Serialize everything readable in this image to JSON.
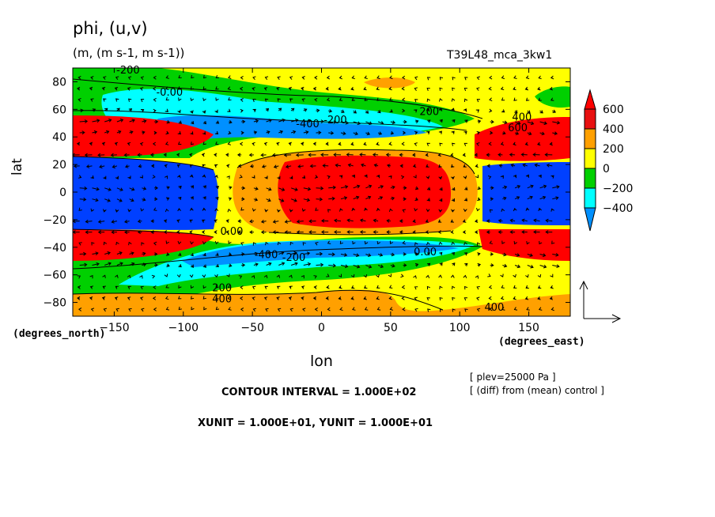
{
  "header": {
    "title": "phi, (u,v)",
    "units": "(m, (m s-1, m s-1))",
    "run": "T39L48_mca_3kw1"
  },
  "footer": {
    "contour_interval": "CONTOUR INTERVAL = 1.000E+02",
    "xyunit": "XUNIT = 1.000E+01, YUNIT = 1.000E+01",
    "plev": "[ plev=25000 Pa ]",
    "diff": "[ (diff) from (mean) control ]"
  },
  "chart_data": {
    "type": "heatmap",
    "title": "phi, (u,v)",
    "xlabel": "lon",
    "ylabel": "lat",
    "x_units_label": "(degrees_east)",
    "y_units_label": "(degrees_north)",
    "xlim": [
      -180,
      180
    ],
    "ylim": [
      -90,
      90
    ],
    "x_ticks": [
      -150,
      -100,
      -50,
      0,
      50,
      100,
      150
    ],
    "y_ticks": [
      -80,
      -60,
      -40,
      -20,
      0,
      20,
      40,
      60,
      80
    ],
    "colorbar": {
      "labels": [
        "600",
        "400",
        "200",
        "0",
        "-200",
        "-400"
      ],
      "levels": [
        600,
        400,
        200,
        0,
        -200,
        -400
      ],
      "colors": {
        "ge_600": "#ff0000",
        "400_600": "#e81010",
        "200_400": "#ffa000",
        "0_200": "#ffff00",
        "-200_0": "#00d000",
        "-400_-200": "#00ffff",
        "lt_-400": "#0090ff",
        "lowest": "#0040ff"
      }
    },
    "contour_labels": [
      {
        "lon": -140,
        "lat": 86,
        "text": "-200"
      },
      {
        "lon": -110,
        "lat": 70,
        "text": "-0.00"
      },
      {
        "lon": -10,
        "lat": 47,
        "text": "-400"
      },
      {
        "lon": 10,
        "lat": 50,
        "text": "-200"
      },
      {
        "lon": 78,
        "lat": 56,
        "text": "200"
      },
      {
        "lon": 145,
        "lat": 52,
        "text": "400"
      },
      {
        "lon": 142,
        "lat": 44,
        "text": "600"
      },
      {
        "lon": -65,
        "lat": -31,
        "text": "0.00"
      },
      {
        "lon": -40,
        "lat": -48,
        "text": "-400"
      },
      {
        "lon": -20,
        "lat": -50,
        "text": "-200"
      },
      {
        "lon": 75,
        "lat": -46,
        "text": "0.00"
      },
      {
        "lon": -72,
        "lat": -72,
        "text": "200"
      },
      {
        "lon": -72,
        "lat": -80,
        "text": "400"
      },
      {
        "lon": 125,
        "lat": -86,
        "text": "400"
      }
    ]
  }
}
